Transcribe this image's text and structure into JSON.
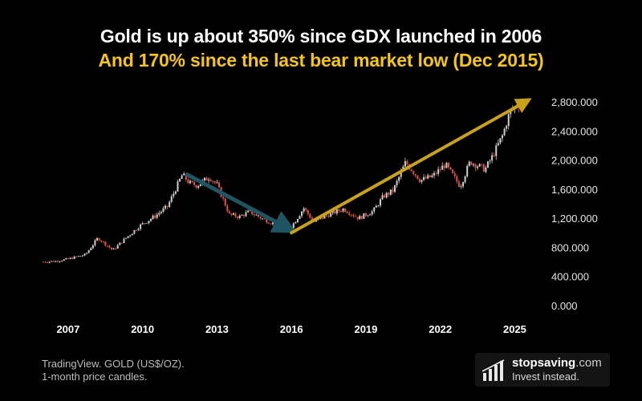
{
  "title": {
    "line1": "Gold is up about 350% since GDX launched in 2006",
    "line2": "And 170% since the last bear market low (Dec 2015)",
    "line2_color": "#f5c518"
  },
  "source": {
    "line1": "TradingView. GOLD (US$/OZ).",
    "line2": "1-month price candles."
  },
  "brand": {
    "name": "stopsaving",
    "domain": ".com",
    "tagline": "Invest instead.",
    "logo_icon": "bar-chart-icon"
  },
  "chart_data": {
    "type": "candlestick",
    "title": "",
    "xlabel": "",
    "ylabel": "",
    "x_tick_labels": [
      "2007",
      "2010",
      "2013",
      "2016",
      "2019",
      "2022",
      "2025"
    ],
    "y_tick_labels": [
      "0.000",
      "400.000",
      "800.000",
      "1,200.000",
      "1,600.000",
      "2,000.000",
      "2,400.000",
      "2,800.000"
    ],
    "y_ticks": [
      0,
      400,
      800,
      1200,
      1600,
      2000,
      2400,
      2800
    ],
    "ylim": [
      0,
      2800
    ],
    "xlim": [
      2006.0,
      2025.6
    ],
    "grid": false,
    "up_color": "#cfcfcf",
    "down_color": "#e0534a",
    "monthly_close_anchors": [
      {
        "x": 2006.0,
        "y": 600
      },
      {
        "x": 2006.5,
        "y": 610
      },
      {
        "x": 2007.0,
        "y": 640
      },
      {
        "x": 2007.7,
        "y": 700
      },
      {
        "x": 2008.2,
        "y": 930
      },
      {
        "x": 2008.8,
        "y": 760
      },
      {
        "x": 2009.3,
        "y": 920
      },
      {
        "x": 2009.9,
        "y": 1100
      },
      {
        "x": 2010.5,
        "y": 1230
      },
      {
        "x": 2011.0,
        "y": 1360
      },
      {
        "x": 2011.6,
        "y": 1800
      },
      {
        "x": 2011.9,
        "y": 1680
      },
      {
        "x": 2012.2,
        "y": 1650
      },
      {
        "x": 2012.7,
        "y": 1770
      },
      {
        "x": 2013.0,
        "y": 1660
      },
      {
        "x": 2013.5,
        "y": 1250
      },
      {
        "x": 2013.9,
        "y": 1220
      },
      {
        "x": 2014.3,
        "y": 1290
      },
      {
        "x": 2014.9,
        "y": 1180
      },
      {
        "x": 2015.5,
        "y": 1100
      },
      {
        "x": 2015.95,
        "y": 1060
      },
      {
        "x": 2016.5,
        "y": 1340
      },
      {
        "x": 2016.9,
        "y": 1150
      },
      {
        "x": 2017.5,
        "y": 1250
      },
      {
        "x": 2018.1,
        "y": 1330
      },
      {
        "x": 2018.7,
        "y": 1200
      },
      {
        "x": 2019.3,
        "y": 1300
      },
      {
        "x": 2019.7,
        "y": 1500
      },
      {
        "x": 2020.1,
        "y": 1580
      },
      {
        "x": 2020.6,
        "y": 1970
      },
      {
        "x": 2021.2,
        "y": 1720
      },
      {
        "x": 2021.7,
        "y": 1780
      },
      {
        "x": 2022.2,
        "y": 1940
      },
      {
        "x": 2022.8,
        "y": 1640
      },
      {
        "x": 2023.2,
        "y": 1980
      },
      {
        "x": 2023.8,
        "y": 1870
      },
      {
        "x": 2024.1,
        "y": 2050
      },
      {
        "x": 2024.5,
        "y": 2330
      },
      {
        "x": 2024.8,
        "y": 2660
      },
      {
        "x": 2025.1,
        "y": 2760
      },
      {
        "x": 2025.3,
        "y": 2800
      }
    ],
    "annotations": [
      {
        "name": "decline-arrow",
        "from": {
          "x": 2011.8,
          "y": 1800
        },
        "to": {
          "x": 2015.95,
          "y": 1020
        },
        "color": "#1f5563"
      },
      {
        "name": "rise-arrow",
        "from": {
          "x": 2016.0,
          "y": 1000
        },
        "to": {
          "x": 2025.6,
          "y": 2830
        },
        "color": "#c9a21a"
      }
    ]
  }
}
